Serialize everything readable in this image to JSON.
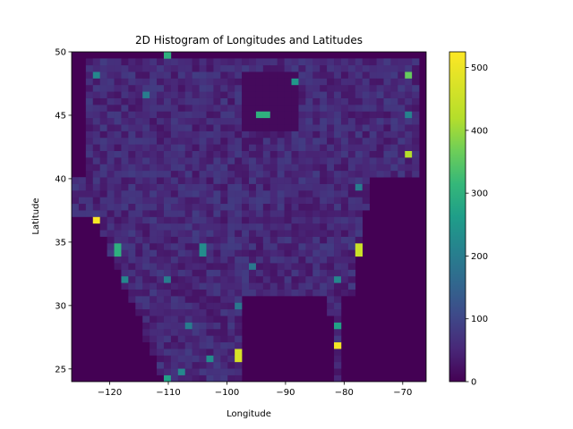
{
  "chart_data": {
    "type": "heatmap",
    "title": "2D Histogram of Longitudes and Latitudes",
    "xlabel": "Longitude",
    "ylabel": "Latitude",
    "xlim": [
      -126.5,
      -66.0
    ],
    "ylim": [
      24.0,
      50.0
    ],
    "xticks": [
      -120,
      -110,
      -100,
      -90,
      -80,
      -70
    ],
    "xtick_labels": [
      "−120",
      "−110",
      "−100",
      "−90",
      "−80",
      "−70"
    ],
    "yticks": [
      25,
      30,
      35,
      40,
      45,
      50
    ],
    "ytick_labels": [
      "25",
      "30",
      "35",
      "40",
      "45",
      "50"
    ],
    "bins": [
      50,
      50
    ],
    "colormap": "viridis",
    "colorbar": {
      "range": [
        0,
        525
      ],
      "ticks": [
        0,
        100,
        200,
        300,
        400,
        500
      ],
      "tick_labels": [
        "0",
        "100",
        "200",
        "300",
        "400",
        "500"
      ]
    },
    "hotspots": [
      {
        "x": -122.3,
        "y": 36.8,
        "count": 520
      },
      {
        "x": -81.5,
        "y": 26.7,
        "count": 510
      },
      {
        "x": -98.5,
        "y": 26.1,
        "count": 470
      },
      {
        "x": -77.5,
        "y": 34.4,
        "count": 450
      },
      {
        "x": -69.2,
        "y": 42.1,
        "count": 420
      },
      {
        "x": -69.2,
        "y": 48.0,
        "count": 360
      },
      {
        "x": -110.5,
        "y": 49.7,
        "count": 300
      },
      {
        "x": -93.8,
        "y": 45.0,
        "count": 300
      },
      {
        "x": -88.0,
        "y": 47.5,
        "count": 250
      },
      {
        "x": -118.5,
        "y": 34.4,
        "count": 300
      },
      {
        "x": -81.5,
        "y": 28.5,
        "count": 270
      },
      {
        "x": -110.5,
        "y": 24.4,
        "count": 270
      },
      {
        "x": -104.5,
        "y": 34.4,
        "count": 230
      },
      {
        "x": -117.5,
        "y": 31.9,
        "count": 220
      },
      {
        "x": -81.5,
        "y": 31.9,
        "count": 220
      },
      {
        "x": -122.3,
        "y": 48.0,
        "count": 220
      },
      {
        "x": -69.2,
        "y": 45.0,
        "count": 210
      },
      {
        "x": -77.5,
        "y": 39.2,
        "count": 200
      },
      {
        "x": -113.3,
        "y": 46.6,
        "count": 200
      },
      {
        "x": -102.5,
        "y": 25.6,
        "count": 230
      },
      {
        "x": -107.5,
        "y": 24.9,
        "count": 220
      },
      {
        "x": -95.5,
        "y": 33.3,
        "count": 190
      },
      {
        "x": -110.5,
        "y": 32.0,
        "count": 200
      },
      {
        "x": -106.5,
        "y": 28.5,
        "count": 200
      },
      {
        "x": -98.5,
        "y": 30.0,
        "count": 190
      }
    ]
  }
}
